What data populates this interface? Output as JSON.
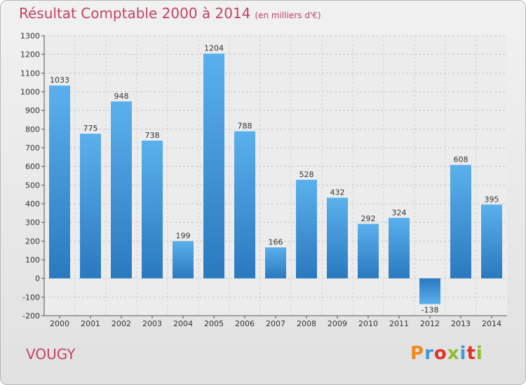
{
  "title": "Résultat Comptable 2000 à 2014",
  "subtitle": "(en milliers d'€)",
  "commune": "VOUGY",
  "logo": {
    "text": "Proxiti",
    "colors": [
      "#f08a1c",
      "#3f9ad6",
      "#e2312b",
      "#8fbe2e",
      "#3f9ad6",
      "#e2312b",
      "#8fbe2e"
    ]
  },
  "colors": {
    "bar_light": "#5ab0ec",
    "bar_dark": "#2a79bf",
    "title": "#c14466"
  },
  "chart_data": {
    "type": "bar",
    "categories": [
      "2000",
      "2001",
      "2002",
      "2003",
      "2004",
      "2005",
      "2006",
      "2007",
      "2008",
      "2009",
      "2010",
      "2011",
      "2012",
      "2013",
      "2014"
    ],
    "values": [
      1033,
      775,
      948,
      738,
      199,
      1204,
      788,
      166,
      528,
      432,
      292,
      324,
      -138,
      608,
      395
    ],
    "value_labels": [
      "1033",
      "775",
      "948",
      "738",
      "199",
      "1204",
      "788",
      "166",
      "528",
      "432",
      "292",
      "324",
      "-138",
      "608",
      "395"
    ],
    "ylim": [
      -200,
      1300
    ],
    "yticks": [
      "-200",
      "-100",
      "0",
      "100",
      "200",
      "300",
      "400",
      "500",
      "600",
      "700",
      "800",
      "900",
      "1000",
      "1100",
      "1200",
      "1300"
    ],
    "grid": true
  }
}
